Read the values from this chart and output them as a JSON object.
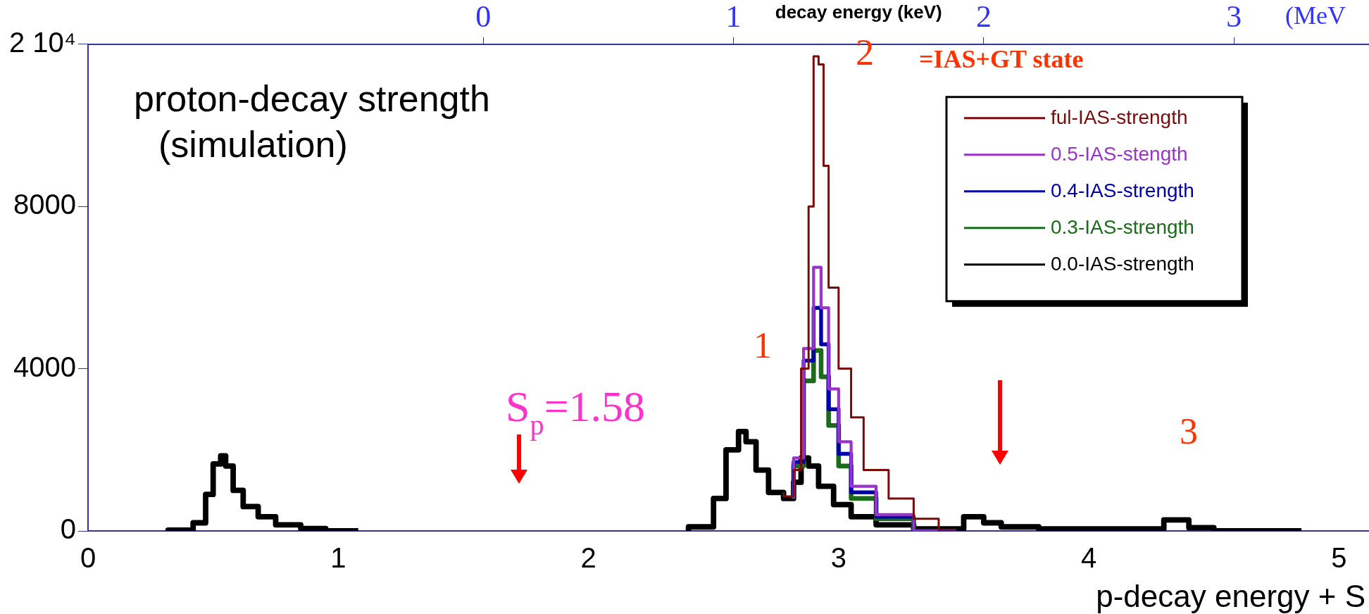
{
  "chart_data": {
    "type": "step",
    "title": "proton-decay strength",
    "subtitle": "(simulation)",
    "xlabel": "p-decay energy + S",
    "x2label": "decay energy (keV)",
    "xlim": [
      0,
      5.12
    ],
    "xticks": [
      0,
      1,
      2,
      3,
      4,
      5
    ],
    "x2lim": [
      -1.58,
      3.54
    ],
    "x2ticks": [
      0,
      1,
      2,
      3
    ],
    "ylim": [
      0,
      12000
    ],
    "yticks": [
      0,
      4000,
      8000,
      {
        "value": 12000,
        "label": "2 10⁴"
      }
    ],
    "legend": "top right",
    "grid": false,
    "annotations": [
      "1",
      "2",
      "3",
      "S$_{p}$=1.58",
      "=IAS+GT state",
      "(MeV"
    ],
    "series": [
      {
        "name": "ful-IAS-strength",
        "color": "#7b0a0a",
        "x": [
          2.78,
          2.82,
          2.85,
          2.88,
          2.9,
          2.92,
          2.94,
          2.96,
          3.0,
          3.05,
          3.1,
          3.2,
          3.3,
          3.4,
          3.47
        ],
        "values": [
          950,
          850,
          1500,
          4000,
          8000,
          11700,
          11500,
          9000,
          6000,
          4000,
          2800,
          1500,
          800,
          300,
          0
        ]
      },
      {
        "name": "0.5-IAS-stength",
        "color": "#9933cc",
        "x": [
          2.82,
          2.86,
          2.9,
          2.93,
          2.96,
          3.0,
          3.05,
          3.15,
          3.3,
          3.47
        ],
        "values": [
          800,
          1800,
          4500,
          6500,
          5500,
          3500,
          2200,
          1100,
          400,
          0
        ]
      },
      {
        "name": "0.4-IAS-strength",
        "color": "#0000aa",
        "x": [
          2.82,
          2.86,
          2.9,
          2.93,
          2.96,
          3.0,
          3.05,
          3.15,
          3.3,
          3.47
        ],
        "values": [
          800,
          1700,
          4200,
          5500,
          4600,
          3000,
          1900,
          950,
          350,
          0
        ]
      },
      {
        "name": "0.3-IAS-strength",
        "color": "#1a6b1a",
        "x": [
          2.82,
          2.86,
          2.9,
          2.93,
          2.96,
          3.0,
          3.05,
          3.15,
          3.3,
          3.47
        ],
        "values": [
          800,
          1600,
          3700,
          4450,
          3800,
          2600,
          1600,
          800,
          300,
          0
        ]
      },
      {
        "name": "0.0-IAS-strength",
        "color": "#000000",
        "x": [
          0.32,
          0.42,
          0.47,
          0.5,
          0.53,
          0.55,
          0.58,
          0.62,
          0.68,
          0.75,
          0.85,
          0.95,
          1.08,
          1.5,
          2.4,
          2.5,
          2.55,
          2.6,
          2.63,
          2.67,
          2.72,
          2.78,
          2.82,
          2.85,
          2.88,
          2.92,
          2.98,
          3.05,
          3.15,
          3.3,
          3.45,
          3.5,
          3.58,
          3.65,
          3.8,
          4.0,
          4.3,
          4.4,
          4.5,
          4.85
        ],
        "values": [
          0,
          20,
          200,
          900,
          1650,
          1850,
          1600,
          1000,
          600,
          350,
          150,
          60,
          0,
          null,
          0,
          100,
          800,
          2000,
          2450,
          2200,
          1500,
          950,
          800,
          1200,
          1800,
          1600,
          1100,
          650,
          350,
          150,
          50,
          50,
          350,
          200,
          100,
          50,
          50,
          270,
          80,
          0
        ]
      }
    ]
  }
}
